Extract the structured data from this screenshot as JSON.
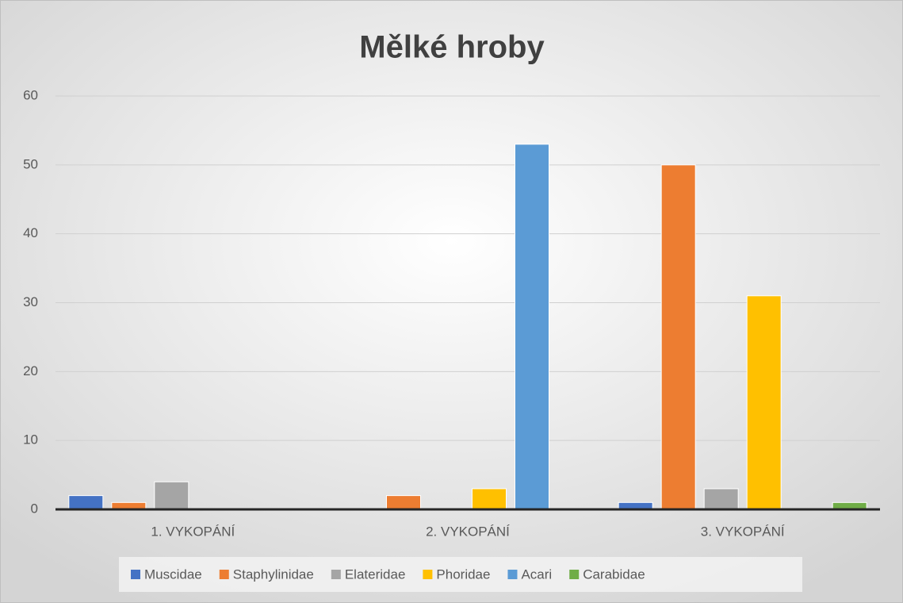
{
  "chart_data": {
    "type": "bar",
    "title": "Mělké hroby",
    "categories": [
      "1. VYKOPÁNÍ",
      "2. VYKOPÁNÍ",
      "3. VYKOPÁNÍ"
    ],
    "series": [
      {
        "name": "Muscidae",
        "color": "#4472c4",
        "values": [
          2,
          0,
          1
        ]
      },
      {
        "name": "Staphylinidae",
        "color": "#ed7d31",
        "values": [
          1,
          2,
          50
        ]
      },
      {
        "name": "Elateridae",
        "color": "#a5a5a5",
        "values": [
          4,
          0,
          3
        ]
      },
      {
        "name": "Phoridae",
        "color": "#ffc000",
        "values": [
          0,
          3,
          31
        ]
      },
      {
        "name": "Acari",
        "color": "#5b9bd5",
        "values": [
          0,
          53,
          0
        ]
      },
      {
        "name": "Carabidae",
        "color": "#70ad47",
        "values": [
          0,
          0,
          1
        ]
      }
    ],
    "ylim": [
      0,
      60
    ],
    "yticks": [
      0,
      10,
      20,
      30,
      40,
      50,
      60
    ],
    "grid": true,
    "legend": "bottom"
  }
}
